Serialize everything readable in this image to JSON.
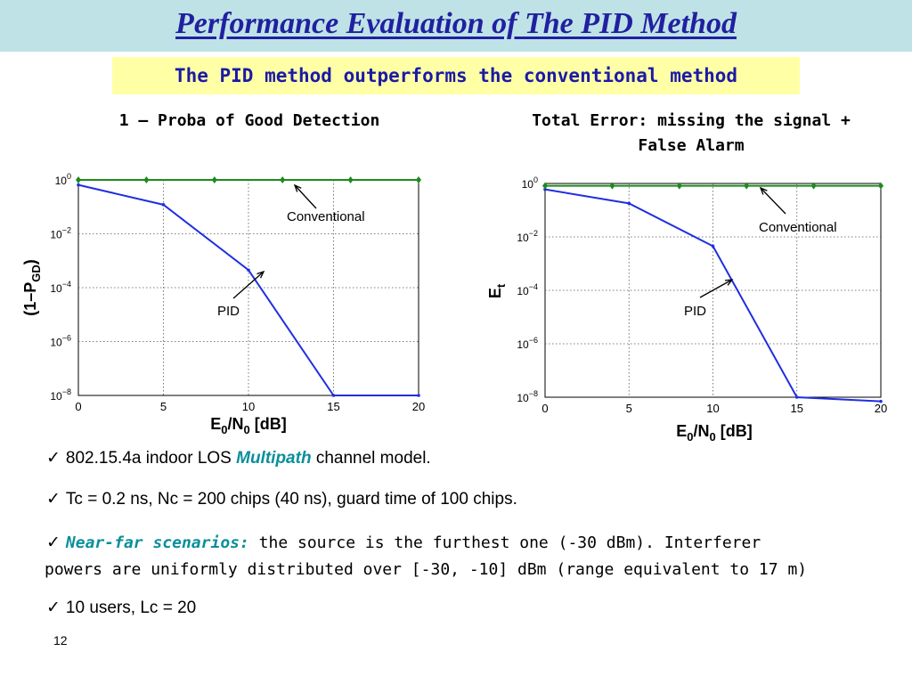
{
  "slide": {
    "title": "Performance Evaluation of The PID Method",
    "subtitle": "The PID method outperforms the conventional method",
    "page_number": "12",
    "bullets": [
      {
        "check": "✓",
        "prefix": "802.15.4a indoor LOS ",
        "emph": "Multipath",
        "suffix": " channel model."
      },
      {
        "check": "✓",
        "text": "Tc = 0.2 ns, Nc = 200 chips (40 ns), guard time of 100 chips."
      },
      {
        "check": "✓",
        "emph": "Near-far scenarios:",
        "line1": " the source is the furthest one (-30 dBm). Interferer",
        "line2": "powers are uniformly distributed over [-30, -10] dBm (range equivalent to 17 m)"
      },
      {
        "check": "✓",
        "text": "10 users, Lc = 20"
      }
    ]
  },
  "colors": {
    "title": "#2020a0",
    "title_bg": "#bfe2e6",
    "subtitle_bg": "#ffffa6",
    "emphasis": "#0a8f9a",
    "pid_line": "#1f2fe0",
    "conventional_line": "#1e8a1e"
  },
  "chart_data": [
    {
      "type": "line",
      "title": "1 – Proba of Good Detection",
      "xlabel": "E0/N0 [dB]",
      "xlabel_parts": {
        "main1": "E",
        "sub1": "0",
        "main2": "/N",
        "sub2": "0",
        "tail": " [dB]"
      },
      "ylabel_parts": {
        "pre": "(1–P",
        "sub": "GD",
        "post": ")"
      },
      "yscale": "log",
      "xlim": [
        0,
        20
      ],
      "ylim": [
        1e-08,
        1
      ],
      "xticks": [
        "0",
        "5",
        "10",
        "15",
        "20"
      ],
      "ytick_exponents": [
        "0",
        "−2",
        "−4",
        "−6",
        "−8"
      ],
      "grid": true,
      "annotations": [
        {
          "text": "Conventional",
          "series": "conventional"
        },
        {
          "text": "PID",
          "series": "pid"
        }
      ],
      "series": [
        {
          "name": "PID",
          "key": "pid",
          "x": [
            0,
            5,
            10,
            15,
            20
          ],
          "y": [
            0.65,
            0.12,
            0.00045,
            1e-08,
            1e-08
          ]
        },
        {
          "name": "Conventional",
          "key": "conventional",
          "x": [
            0,
            4,
            8,
            12,
            16,
            20
          ],
          "y": [
            1,
            1,
            1,
            1,
            1,
            1
          ]
        }
      ]
    },
    {
      "type": "line",
      "title": "Total Error: missing the signal + False Alarm",
      "title_lines": [
        "Total Error: missing the signal +",
        "False Alarm"
      ],
      "xlabel": "E0/N0 [dB]",
      "xlabel_parts": {
        "main1": "E",
        "sub1": "0",
        "main2": "/N",
        "sub2": "0",
        "tail": " [dB]"
      },
      "ylabel_parts": {
        "pre": "E",
        "sub": "t",
        "post": ""
      },
      "yscale": "log",
      "xlim": [
        0,
        20
      ],
      "ylim": [
        1e-08,
        1
      ],
      "xticks": [
        "0",
        "5",
        "10",
        "15",
        "20"
      ],
      "ytick_exponents": [
        "0",
        "−2",
        "−4",
        "−6",
        "−8"
      ],
      "grid": true,
      "annotations": [
        {
          "text": "Conventional",
          "series": "conventional"
        },
        {
          "text": "PID",
          "series": "pid"
        }
      ],
      "series": [
        {
          "name": "PID",
          "key": "pid",
          "x": [
            0,
            5,
            10,
            15,
            20
          ],
          "y": [
            0.6,
            0.18,
            0.0045,
            1e-08,
            7e-09
          ]
        },
        {
          "name": "Conventional",
          "key": "conventional",
          "x": [
            0,
            4,
            8,
            12,
            16,
            20
          ],
          "y": [
            0.82,
            0.82,
            0.82,
            0.82,
            0.82,
            0.82
          ]
        }
      ]
    }
  ]
}
